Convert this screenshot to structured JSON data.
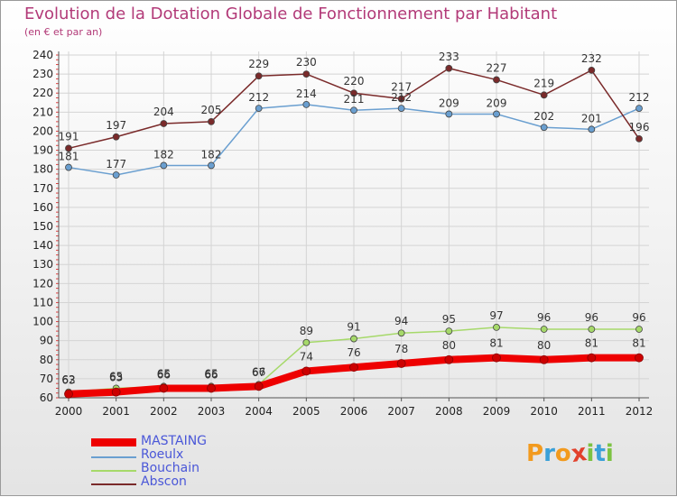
{
  "title": "Evolution de la Dotation Globale de Fonctionnement par Habitant",
  "subtitle": "(en € et par an)",
  "logo": {
    "text": "Proxiti",
    "letters": [
      {
        "ch": "P",
        "color": "#f29a1e"
      },
      {
        "ch": "r",
        "color": "#3aa0d8"
      },
      {
        "ch": "o",
        "color": "#f29a1e"
      },
      {
        "ch": "x",
        "color": "#e2402b"
      },
      {
        "ch": "i",
        "color": "#7cc242"
      },
      {
        "ch": "t",
        "color": "#3aa0d8"
      },
      {
        "ch": "i",
        "color": "#7cc242"
      }
    ]
  },
  "chart_data": {
    "type": "line",
    "x": [
      "2000",
      "2001",
      "2002",
      "2003",
      "2004",
      "2005",
      "2006",
      "2007",
      "2008",
      "2009",
      "2010",
      "2011",
      "2012"
    ],
    "ylim": [
      60,
      240
    ],
    "yticks": [
      60,
      70,
      80,
      90,
      100,
      110,
      120,
      130,
      140,
      150,
      160,
      170,
      180,
      190,
      200,
      210,
      220,
      230,
      240
    ],
    "grid": true,
    "legend_position": "bottom-left",
    "series": [
      {
        "name": "MASTAING",
        "color": "#ee0000",
        "values": [
          62,
          63,
          65,
          65,
          66,
          74,
          76,
          78,
          80,
          81,
          80,
          81,
          81
        ]
      },
      {
        "name": "Roeulx",
        "color": "#6a9fd0",
        "values": [
          181,
          177,
          182,
          182,
          212,
          214,
          211,
          212,
          209,
          209,
          202,
          201,
          212
        ]
      },
      {
        "name": "Bouchain",
        "color": "#a6d96a",
        "values": [
          63,
          65,
          66,
          66,
          67,
          89,
          91,
          94,
          95,
          97,
          96,
          96,
          96
        ]
      },
      {
        "name": "Abscon",
        "color": "#7a2a2a",
        "values": [
          191,
          197,
          204,
          205,
          229,
          230,
          220,
          217,
          233,
          227,
          219,
          232,
          196
        ]
      }
    ]
  }
}
